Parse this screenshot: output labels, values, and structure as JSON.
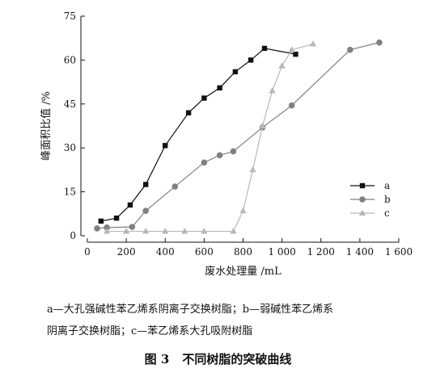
{
  "chart_data": {
    "type": "line",
    "xlabel": "废水处理量 /mL",
    "ylabel": "峰面积比值 /%",
    "xlim": [
      0,
      1600
    ],
    "ylim": [
      0,
      75
    ],
    "xticks": [
      0,
      200,
      400,
      600,
      800,
      1000,
      1200,
      1400,
      1600
    ],
    "xtick_labels": [
      "0",
      "200",
      "400",
      "600",
      "800",
      "1 000",
      "1 200",
      "1 400",
      "1 600"
    ],
    "yticks": [
      0,
      15,
      30,
      45,
      60,
      75
    ],
    "ytick_labels": [
      "0",
      "15",
      "30",
      "45",
      "60",
      "75"
    ],
    "grid": false,
    "legend_position": "right",
    "series": [
      {
        "name": "a",
        "marker": "square",
        "color": "#111111",
        "x": [
          70,
          150,
          220,
          300,
          400,
          520,
          600,
          680,
          760,
          840,
          910,
          1070
        ],
        "y": [
          5,
          6,
          10.5,
          17.5,
          30.8,
          42,
          47,
          50.5,
          56,
          60,
          64,
          62
        ]
      },
      {
        "name": "b",
        "marker": "circle",
        "color": "#808080",
        "x": [
          50,
          100,
          230,
          300,
          450,
          600,
          680,
          750,
          900,
          1050,
          1350,
          1500
        ],
        "y": [
          2.5,
          2.8,
          3,
          8.5,
          16.8,
          25,
          27.5,
          28.8,
          37,
          44.5,
          63.5,
          66
        ]
      },
      {
        "name": "c",
        "marker": "triangle",
        "color": "#b8b8b8",
        "x": [
          100,
          200,
          300,
          400,
          500,
          600,
          750,
          800,
          850,
          900,
          950,
          1000,
          1050,
          1160
        ],
        "y": [
          1.5,
          1.5,
          1.5,
          1.5,
          1.5,
          1.5,
          1.5,
          8.5,
          22.5,
          37.5,
          49.5,
          58,
          63.5,
          65.5
        ]
      }
    ]
  },
  "caption": {
    "line1": "a—大孔强碱性苯乙烯系阴离子交换树脂；b—弱碱性苯乙烯系",
    "line2": "阴离子交换树脂；c—苯乙烯系大孔吸附树脂",
    "figure_number": "图 3",
    "figure_title": "不同树脂的突破曲线"
  }
}
